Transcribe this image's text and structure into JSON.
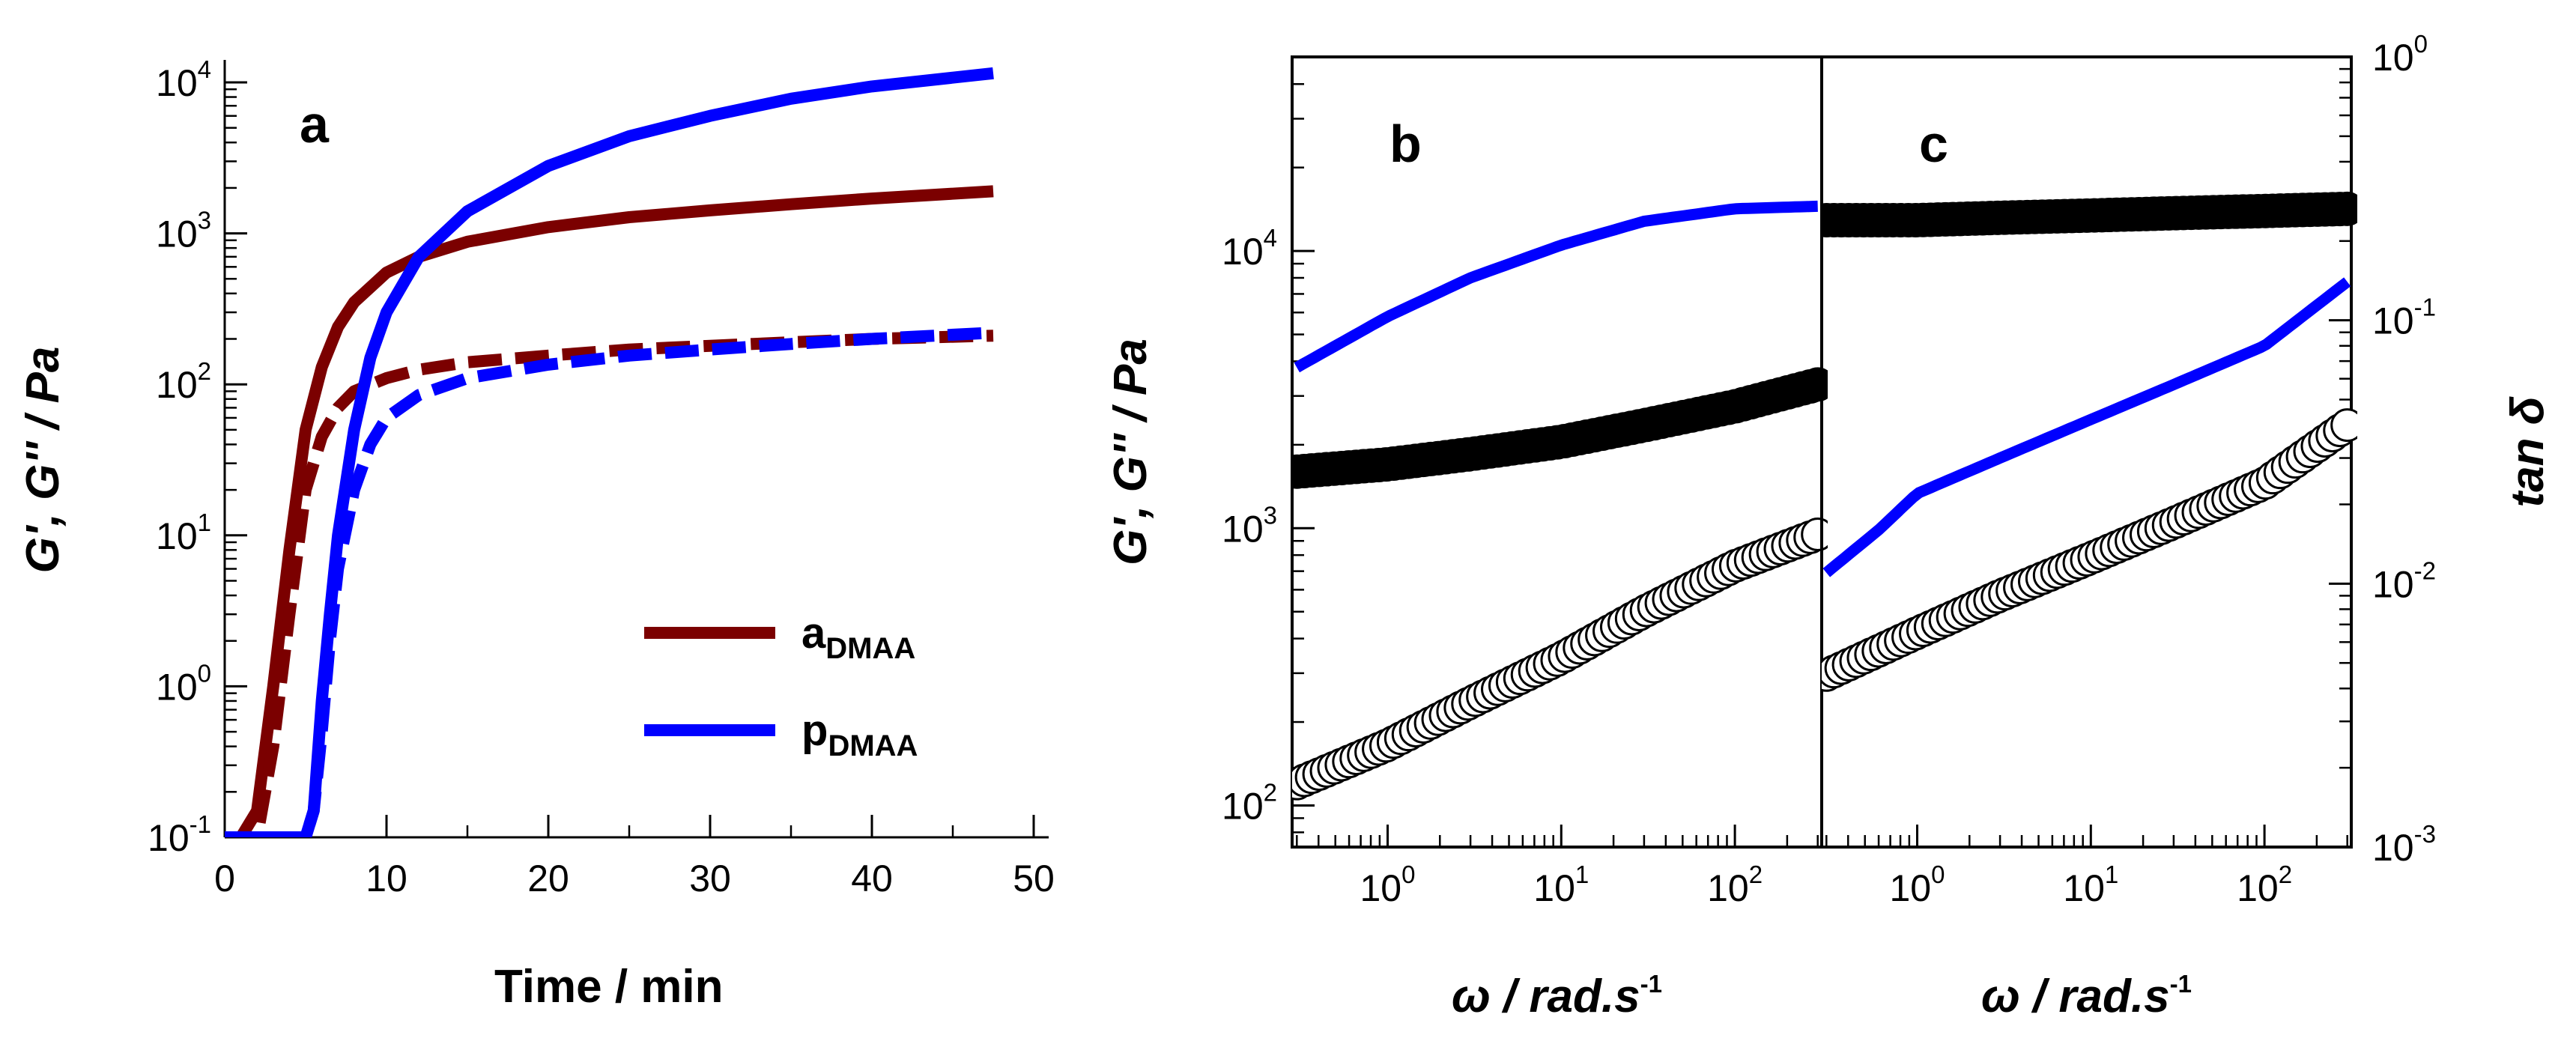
{
  "colors": {
    "maroon": "#7b0000",
    "blue": "#0000ff",
    "black": "#000000"
  },
  "chart_data": [
    {
      "panel": "a",
      "type": "line",
      "panel_label": "a",
      "xlabel": "Time / min",
      "ylabel": "G', G'' / Pa",
      "xlim": [
        0,
        50
      ],
      "ylim_log10": [
        -1,
        4
      ],
      "x_ticks": [
        "0",
        "10",
        "20",
        "30",
        "40",
        "50"
      ],
      "y_ticks": [
        {
          "base": "10",
          "exp": "4"
        },
        {
          "base": "10",
          "exp": "3"
        },
        {
          "base": "10",
          "exp": "2"
        },
        {
          "base": "10",
          "exp": "1"
        },
        {
          "base": "10",
          "exp": "0"
        },
        {
          "base": "10",
          "exp": "-1"
        }
      ],
      "legend": [
        {
          "label": "a",
          "sub": "DMAA",
          "color": "#7b0000"
        },
        {
          "label": "p",
          "sub": "DMAA",
          "color": "#0000ff"
        }
      ],
      "series": [
        {
          "name": "aDMAA G'",
          "color": "#7b0000",
          "style": "solid",
          "x": [
            0,
            1,
            2,
            3,
            4,
            5,
            6,
            7,
            8,
            10,
            12,
            15,
            20,
            25,
            30,
            35,
            40,
            47.5
          ],
          "y": [
            0.1,
            0.1,
            0.15,
            1,
            8,
            50,
            130,
            240,
            350,
            550,
            700,
            880,
            1100,
            1280,
            1420,
            1560,
            1700,
            1900
          ]
        },
        {
          "name": "aDMAA G''",
          "color": "#7b0000",
          "style": "dashed",
          "x": [
            0,
            1,
            2,
            3,
            4,
            5,
            6,
            7,
            8,
            10,
            12,
            15,
            20,
            25,
            30,
            35,
            40,
            47.5
          ],
          "y": [
            0.1,
            0.1,
            0.1,
            0.4,
            3,
            20,
            45,
            70,
            90,
            110,
            125,
            140,
            155,
            170,
            180,
            190,
            200,
            210
          ]
        },
        {
          "name": "pDMAA G'",
          "color": "#0000ff",
          "style": "solid",
          "x": [
            0,
            2,
            4,
            5,
            5.5,
            6,
            6.5,
            7,
            8,
            9,
            10,
            12,
            15,
            20,
            25,
            30,
            35,
            40,
            47.5
          ],
          "y": [
            0.1,
            0.1,
            0.1,
            0.1,
            0.15,
            0.8,
            3,
            10,
            50,
            150,
            300,
            700,
            1400,
            2800,
            4400,
            6000,
            7800,
            9400,
            11500
          ]
        },
        {
          "name": "pDMAA G''",
          "color": "#0000ff",
          "style": "dashed",
          "x": [
            0,
            2,
            4,
            5,
            5.5,
            6,
            6.5,
            7,
            8,
            9,
            10,
            12,
            15,
            20,
            25,
            30,
            35,
            40,
            47.5
          ],
          "y": [
            0.1,
            0.1,
            0.1,
            0.1,
            0.15,
            0.5,
            2,
            6,
            20,
            40,
            60,
            85,
            110,
            135,
            155,
            170,
            185,
            200,
            220
          ]
        }
      ]
    },
    {
      "panel": "b",
      "type": "scatter",
      "panel_label": "b",
      "xlabel": "ω / rad.s",
      "xlabel_sup": "-1",
      "ylabel": "G', G'' / Pa",
      "xlim_log10": [
        -0.55,
        2.5
      ],
      "ylim_log10": [
        1.85,
        4.7
      ],
      "x_ticks": [
        {
          "base": "10",
          "exp": "0"
        },
        {
          "base": "10",
          "exp": "1"
        },
        {
          "base": "10",
          "exp": "2"
        }
      ],
      "y_ticks": [
        {
          "base": "10",
          "exp": "4"
        },
        {
          "base": "10",
          "exp": "3"
        },
        {
          "base": "10",
          "exp": "2"
        }
      ],
      "series": [
        {
          "name": "pDMAA G'",
          "color": "#0000ff",
          "marker": "line",
          "x": [
            0.3,
            1,
            3,
            10,
            30,
            100,
            300
          ],
          "y": [
            3800,
            5800,
            8000,
            10500,
            12800,
            14200,
            14500
          ]
        },
        {
          "name": "aDMAA G'",
          "color": "#000000",
          "marker": "filled-circle",
          "x": [
            0.3,
            1,
            3,
            10,
            30,
            100,
            300
          ],
          "y": [
            1600,
            1700,
            1850,
            2050,
            2350,
            2750,
            3300
          ]
        },
        {
          "name": "aDMAA G''",
          "color": "#000000",
          "marker": "open-circle",
          "x": [
            0.3,
            1,
            3,
            10,
            30,
            100,
            300
          ],
          "y": [
            120,
            165,
            235,
            340,
            500,
            730,
            950
          ]
        }
      ]
    },
    {
      "panel": "c",
      "type": "scatter",
      "panel_label": "c",
      "xlabel": "ω / rad.s",
      "xlabel_sup": "-1",
      "ylabel": "tan δ",
      "xlim_log10": [
        -0.55,
        2.5
      ],
      "ylim_log10": [
        -3,
        0
      ],
      "x_ticks": [
        {
          "base": "10",
          "exp": "0"
        },
        {
          "base": "10",
          "exp": "1"
        },
        {
          "base": "10",
          "exp": "2"
        }
      ],
      "y_ticks": [
        {
          "base": "10",
          "exp": "0"
        },
        {
          "base": "10",
          "exp": "-1"
        },
        {
          "base": "10",
          "exp": "-2"
        },
        {
          "base": "10",
          "exp": "-3"
        }
      ],
      "series": [
        {
          "name": "tan δ filled",
          "color": "#000000",
          "marker": "filled-circle",
          "x": [
            0.3,
            1,
            3,
            10,
            30,
            100,
            300
          ],
          "y": [
            0.24,
            0.24,
            0.245,
            0.25,
            0.255,
            0.26,
            0.265
          ]
        },
        {
          "name": "tan δ line",
          "color": "#0000ff",
          "marker": "line",
          "x": [
            0.3,
            0.6,
            1,
            3,
            10,
            30,
            100,
            300
          ],
          "y": [
            0.011,
            0.016,
            0.022,
            0.03,
            0.042,
            0.057,
            0.08,
            0.14
          ]
        },
        {
          "name": "tan δ open",
          "color": "#000000",
          "marker": "open-circle",
          "x": [
            0.3,
            1,
            3,
            10,
            30,
            100,
            300
          ],
          "y": [
            0.0045,
            0.0065,
            0.009,
            0.0125,
            0.017,
            0.024,
            0.04
          ]
        }
      ]
    }
  ]
}
